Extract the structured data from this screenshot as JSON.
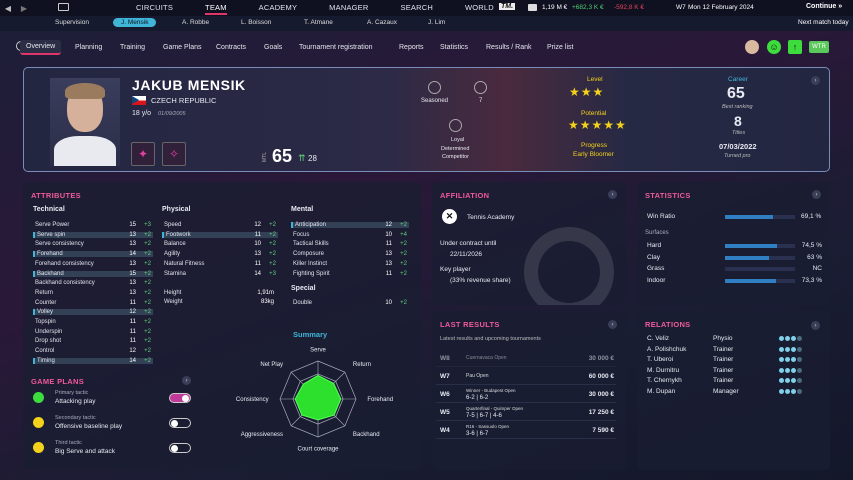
{
  "topbar": {
    "nav": [
      "CIRCUITS",
      "TEAM",
      "ACADEMY",
      "MANAGER",
      "SEARCH",
      "WORLD"
    ],
    "active": "TEAM",
    "money": "1,19 M €",
    "income": "+682,3 K €",
    "expense": "-592,8 K €",
    "date": "Mon 12 February 2024",
    "date_prefix": "W7",
    "continue_label": "Continue",
    "next_match": "Next match today"
  },
  "subnav": [
    "Supervision",
    "J. Mensik",
    "A. Robbe",
    "L. Boisson",
    "T. Atmane",
    "A. Cazaux",
    "J. Lim"
  ],
  "tabs": [
    "Overview",
    "Planning",
    "Training",
    "Game Plans",
    "Contracts",
    "Goals",
    "Tournament registration",
    "Reports",
    "Statistics",
    "Results / Rank",
    "Prize list"
  ],
  "header_right": {
    "wtr_label": "WTR"
  },
  "player": {
    "name": "JAKUB MENSIK",
    "country": "CZECH REPUBLIC",
    "age": "18 y/o",
    "birth": "01/09/2005",
    "mtl_label": "MTL",
    "rating": "65",
    "potential_up": "28",
    "seasoned_label": "Seasoned",
    "seasoned_value": "7",
    "loyal_label": "Loyal",
    "determined_label": "Determined",
    "competitor_label": "Competitor",
    "level_label": "Level",
    "level_stars": 3,
    "potential_label": "Potential",
    "potential_stars": 4.5,
    "progress_label": "Progress",
    "progress_value": "Early Bloomer",
    "career_label": "Career",
    "best_rank": "65",
    "best_rank_label": "Best ranking",
    "titles": "8",
    "titles_label": "Titles",
    "turned_pro": "07/03/2022",
    "turned_pro_label": "Turned pro"
  },
  "attributes": {
    "title": "ATTRIBUTES",
    "technical_title": "Technical",
    "technical": [
      {
        "name": "Serve Power",
        "v": "15",
        "d": "+3"
      },
      {
        "name": "Serve spin",
        "v": "13",
        "d": "+2"
      },
      {
        "name": "Serve consistency",
        "v": "13",
        "d": "+2"
      },
      {
        "name": "Forehand",
        "v": "14",
        "d": "+2"
      },
      {
        "name": "Forehand consistency",
        "v": "13",
        "d": "+2"
      },
      {
        "name": "Backhand",
        "v": "15",
        "d": "+2"
      },
      {
        "name": "Backhand consistency",
        "v": "13",
        "d": "+2"
      },
      {
        "name": "Return",
        "v": "13",
        "d": "+2"
      },
      {
        "name": "Counter",
        "v": "11",
        "d": "+2"
      },
      {
        "name": "Volley",
        "v": "12",
        "d": "+2"
      },
      {
        "name": "Topspin",
        "v": "11",
        "d": "+2"
      },
      {
        "name": "Underspin",
        "v": "11",
        "d": "+2"
      },
      {
        "name": "Drop shot",
        "v": "11",
        "d": "+2"
      },
      {
        "name": "Control",
        "v": "12",
        "d": "+2"
      },
      {
        "name": "Timing",
        "v": "14",
        "d": "+2"
      }
    ],
    "physical_title": "Physical",
    "physical": [
      {
        "name": "Speed",
        "v": "12",
        "d": "+2"
      },
      {
        "name": "Footwork",
        "v": "11",
        "d": "+2"
      },
      {
        "name": "Balance",
        "v": "10",
        "d": "+2"
      },
      {
        "name": "Agility",
        "v": "13",
        "d": "+2"
      },
      {
        "name": "Natural Fitness",
        "v": "11",
        "d": "+2"
      },
      {
        "name": "Stamina",
        "v": "14",
        "d": "+3"
      }
    ],
    "height_label": "Height",
    "height": "1,91m",
    "weight_label": "Weight",
    "weight": "83kg",
    "mental_title": "Mental",
    "mental": [
      {
        "name": "Anticipation",
        "v": "12",
        "d": "+2"
      },
      {
        "name": "Focus",
        "v": "10",
        "d": "+4"
      },
      {
        "name": "Tactical Skills",
        "v": "11",
        "d": "+2"
      },
      {
        "name": "Composure",
        "v": "13",
        "d": "+2"
      },
      {
        "name": "Killer Instinct",
        "v": "13",
        "d": "+2"
      },
      {
        "name": "Fighting Spirit",
        "v": "11",
        "d": "+2"
      }
    ],
    "special_title": "Special",
    "special": [
      {
        "name": "Double",
        "v": "10",
        "d": "+2"
      }
    ]
  },
  "game_plans": {
    "title": "GAME PLANS",
    "items": [
      {
        "label": "Primary tactic",
        "value": "Attacking play",
        "on": true
      },
      {
        "label": "Secondary tactic",
        "value": "Offensive baseline play",
        "on": false
      },
      {
        "label": "Third tactic",
        "value": "Big Serve and attack",
        "on": false
      }
    ]
  },
  "summary": {
    "title": "Summary",
    "axes": [
      "Serve",
      "Return",
      "Forehand",
      "Backhand",
      "Court coverage",
      "Aggressiveness",
      "Consistency",
      "Net Play"
    ],
    "values": [
      0.62,
      0.58,
      0.6,
      0.6,
      0.55,
      0.6,
      0.6,
      0.55
    ]
  },
  "affiliation": {
    "title": "AFFILIATION",
    "academy": "Tennis Academy",
    "contract_label": "Under contract until",
    "contract_date": "22/11/2026",
    "key_player_label": "Key player",
    "revenue_share": "(33% revenue share)"
  },
  "statistics": {
    "title": "STATISTICS",
    "win_ratio_label": "Win Ratio",
    "win_ratio": "69,1 %",
    "win_ratio_frac": 0.691,
    "surfaces_label": "Surfaces",
    "surfaces": [
      {
        "name": "Hard",
        "value": "74,5 %",
        "frac": 0.745
      },
      {
        "name": "Clay",
        "value": "63 %",
        "frac": 0.63
      },
      {
        "name": "Grass",
        "value": "NC",
        "frac": 0
      },
      {
        "name": "Indoor",
        "value": "73,3 %",
        "frac": 0.733
      }
    ]
  },
  "results": {
    "title": "LAST RESULTS",
    "subtitle": "Latest results and upcoming tournaments",
    "rows": [
      {
        "week": "W8",
        "event": "Cuernavaca Open",
        "score": "",
        "prize": "30 000 €",
        "dim": true
      },
      {
        "week": "W7",
        "event": "Pau Open",
        "score": "",
        "prize": "60 000 €",
        "dim": false
      },
      {
        "week": "W6",
        "event": "Winner - Budapest Open",
        "score": "6-2 | 6-2",
        "prize": "30 000 €",
        "dim": false
      },
      {
        "week": "W5",
        "event": "Quarterfinal - Quimper Open",
        "score": "7-5 | 6-7 | 4-6",
        "prize": "17 250 €",
        "dim": false
      },
      {
        "week": "W4",
        "event": "R16 - Sassuolo Open",
        "score": "3-6 | 6-7",
        "prize": "7 590 €",
        "dim": false
      }
    ]
  },
  "relations": {
    "title": "RELATIONS",
    "rows": [
      {
        "name": "C. Veliz",
        "role": "Physio"
      },
      {
        "name": "A. Polishchuk",
        "role": "Trainer"
      },
      {
        "name": "T. Uberoi",
        "role": "Trainer"
      },
      {
        "name": "M. Durnitru",
        "role": "Trainer"
      },
      {
        "name": "T. Chernykh",
        "role": "Trainer"
      },
      {
        "name": "M. Dupan",
        "role": "Manager"
      }
    ]
  },
  "colors": {
    "accent": "#e0356a",
    "cyan": "#3fb6d8",
    "green": "#3ddc3d",
    "star": "#f2d21a"
  }
}
